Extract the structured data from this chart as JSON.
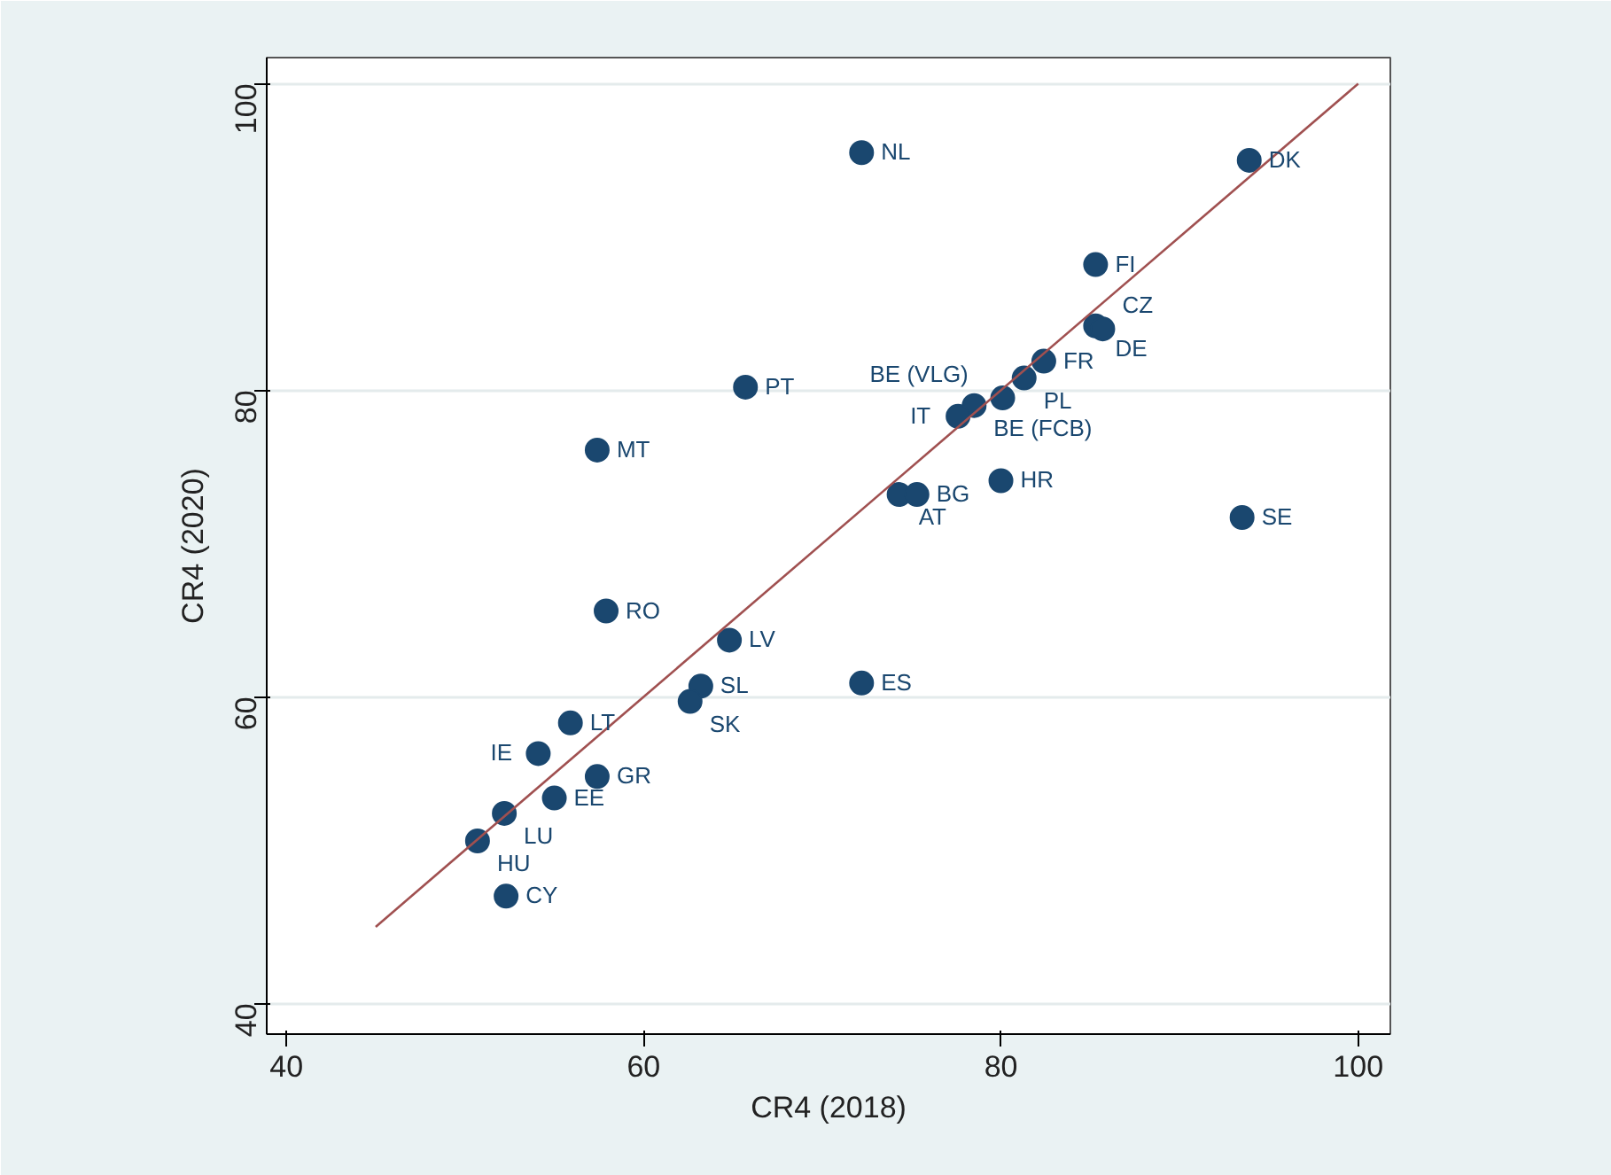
{
  "chart_data": {
    "type": "scatter",
    "xlabel": "CR4 (2018)",
    "ylabel": "CR4 (2020)",
    "xlim": [
      38.9,
      101.8
    ],
    "ylim": [
      38.0,
      101.7
    ],
    "xticks": [
      40,
      60,
      80,
      100
    ],
    "yticks": [
      40,
      60,
      80,
      100
    ],
    "grid": "y",
    "marker": "circle",
    "series": [
      {
        "color": "#1a476f",
        "x": [
          72.2,
          93.9,
          85.3,
          85.3,
          85.7,
          82.4,
          81.3,
          80.1,
          78.5,
          77.6,
          65.7,
          57.4,
          80.0,
          74.3,
          75.3,
          93.5,
          57.9,
          64.8,
          63.2,
          72.2,
          62.6,
          55.9,
          54.1,
          57.4,
          55.0,
          52.2,
          50.7,
          52.3
        ],
        "values": [
          95.5,
          95.0,
          88.2,
          84.2,
          84.0,
          81.9,
          80.8,
          79.5,
          79.0,
          78.3,
          80.2,
          76.1,
          74.1,
          73.2,
          73.2,
          71.7,
          65.6,
          63.7,
          60.7,
          60.9,
          59.7,
          58.3,
          56.3,
          54.8,
          53.4,
          52.4,
          50.6,
          47.0
        ]
      },
      {
        "type": "line",
        "color": "#a05050",
        "x": [
          45,
          100
        ],
        "values": [
          45,
          100
        ],
        "marker": "none",
        "line_style": "solid"
      }
    ],
    "annotations": [
      {
        "text": "NL",
        "x": 72.2,
        "y": 95.5
      },
      {
        "text": "DK",
        "x": 93.9,
        "y": 95.0
      },
      {
        "text": "FI",
        "x": 85.3,
        "y": 88.2
      },
      {
        "text": "DE",
        "x": 85.3,
        "y": 84.2
      },
      {
        "text": "CZ",
        "x": 85.7,
        "y": 84.0
      },
      {
        "text": "FR",
        "x": 82.4,
        "y": 81.9
      },
      {
        "text": "PL",
        "x": 81.3,
        "y": 80.8
      },
      {
        "text": "BE (VLG)",
        "x": 80.1,
        "y": 79.5
      },
      {
        "text": "BE (FCB)",
        "x": 78.5,
        "y": 79.0
      },
      {
        "text": "IT",
        "x": 77.6,
        "y": 78.3
      },
      {
        "text": "PT",
        "x": 65.7,
        "y": 80.2
      },
      {
        "text": "MT",
        "x": 57.4,
        "y": 76.1
      },
      {
        "text": "HR",
        "x": 80.0,
        "y": 74.1
      },
      {
        "text": "AT",
        "x": 74.3,
        "y": 73.2
      },
      {
        "text": "BG",
        "x": 75.3,
        "y": 73.2
      },
      {
        "text": "SE",
        "x": 93.5,
        "y": 71.7
      },
      {
        "text": "RO",
        "x": 57.9,
        "y": 65.6
      },
      {
        "text": "LV",
        "x": 64.8,
        "y": 63.7
      },
      {
        "text": "SL",
        "x": 63.2,
        "y": 60.7
      },
      {
        "text": "ES",
        "x": 72.2,
        "y": 60.9
      },
      {
        "text": "SK",
        "x": 62.6,
        "y": 59.7
      },
      {
        "text": "LT",
        "x": 55.9,
        "y": 58.3
      },
      {
        "text": "IE",
        "x": 54.1,
        "y": 56.3
      },
      {
        "text": "GR",
        "x": 57.4,
        "y": 54.8
      },
      {
        "text": "EE",
        "x": 55.0,
        "y": 53.4
      },
      {
        "text": "LU",
        "x": 52.2,
        "y": 52.4
      },
      {
        "text": "HU",
        "x": 50.7,
        "y": 50.6
      },
      {
        "text": "CY",
        "x": 52.3,
        "y": 47.0
      }
    ]
  }
}
